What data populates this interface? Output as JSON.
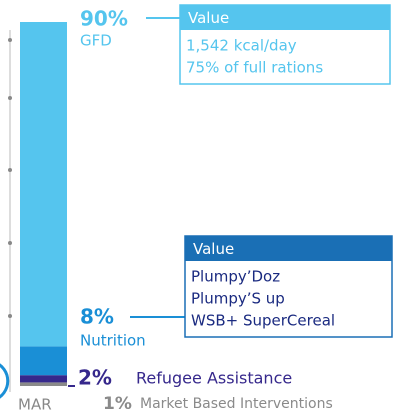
{
  "chart_data": {
    "type": "stacked_bar",
    "categories": [
      "MAR"
    ],
    "series": [
      {
        "name": "GFD",
        "values": [
          90
        ],
        "value_labels": [
          "90%"
        ],
        "color": "#55c5ee",
        "details": {
          "title": "Value",
          "lines": [
            "1,542 kcal/day",
            "75% of full rations"
          ]
        }
      },
      {
        "name": "Nutrition",
        "values": [
          8
        ],
        "value_labels": [
          "8%"
        ],
        "color": "#1a8fd6",
        "details": {
          "title": "Value",
          "lines": [
            "Plumpy’Doz",
            "Plumpy’S  up",
            "WSB+ SuperCereal"
          ]
        }
      },
      {
        "name": "Refugee Assistance",
        "values": [
          2
        ],
        "value_labels": [
          "2%"
        ],
        "color": "#36288c"
      },
      {
        "name": "Market Based Interventions",
        "values": [
          1
        ],
        "value_labels": [
          "1%"
        ],
        "color": "#8a8a8a"
      }
    ]
  }
}
